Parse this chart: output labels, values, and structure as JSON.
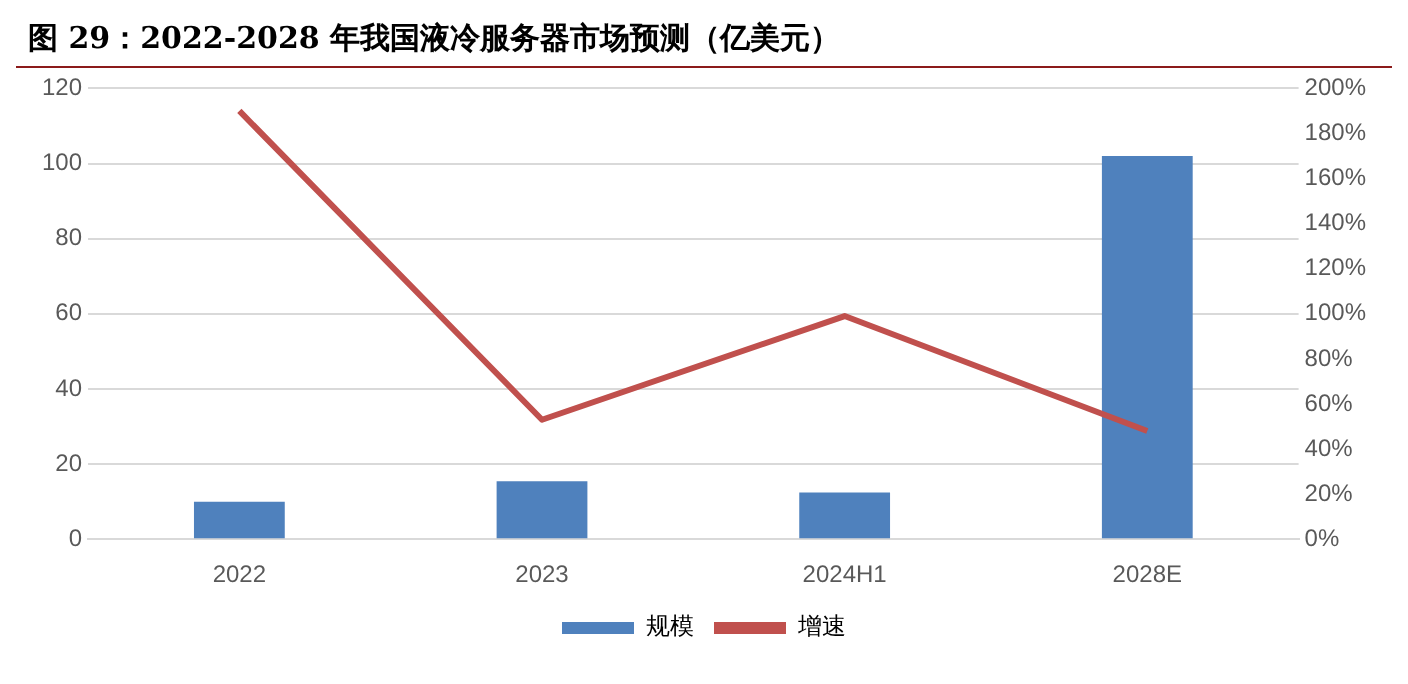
{
  "chart_data": {
    "type": "bar",
    "title": "图 29：2022-2028 年我国液冷服务器市场预测（亿美元）",
    "categories": [
      "2022",
      "2023",
      "2024H1",
      "2028E"
    ],
    "series": [
      {
        "name": "规模",
        "color": "#4f81bd",
        "values": [
          10,
          15.4,
          12.4,
          102
        ]
      },
      {
        "name": "增速",
        "type": "line",
        "axis": "y2",
        "color": "#c0504d",
        "values": [
          190,
          53,
          99,
          48
        ]
      }
    ],
    "ylim": [
      0,
      120
    ],
    "yticks": [
      0,
      20,
      40,
      60,
      80,
      100,
      120
    ],
    "y2lim": [
      0,
      200
    ],
    "y2ticks": [
      {
        "value": 0,
        "label": "0%"
      },
      {
        "value": 20,
        "label": "20%"
      },
      {
        "value": 40,
        "label": "40%"
      },
      {
        "value": 60,
        "label": "60%"
      },
      {
        "value": 80,
        "label": "80%"
      },
      {
        "value": 100,
        "label": "100%"
      },
      {
        "value": 120,
        "label": "120%"
      },
      {
        "value": 140,
        "label": "140%"
      },
      {
        "value": 160,
        "label": "160%"
      },
      {
        "value": 180,
        "label": "180%"
      },
      {
        "value": 200,
        "label": "200%"
      }
    ],
    "grid": "y",
    "legend": "bottom",
    "marker": "none",
    "line_style": "solid"
  }
}
